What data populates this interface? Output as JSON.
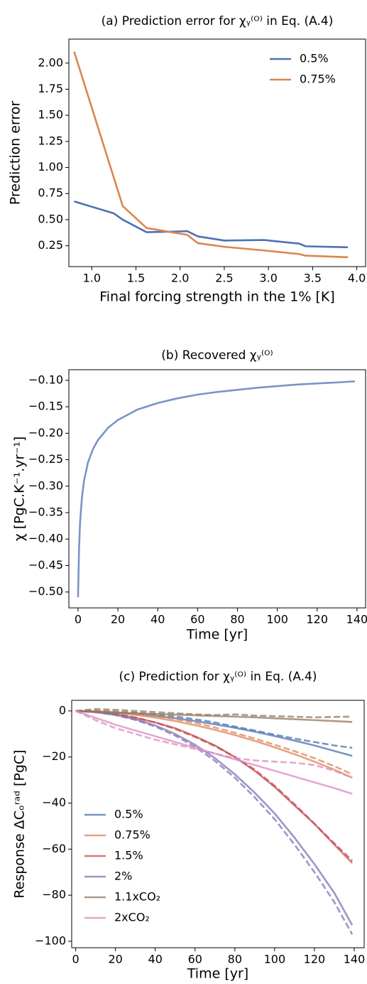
{
  "chart_data": [
    {
      "type": "line",
      "title": "(a)   Prediction error for χᵧ⁽ᴼ⁾ in Eq. (A.4)",
      "xlabel": "Final forcing strength in the 1% [K]",
      "ylabel": "Prediction error",
      "x": [
        0.8,
        1.25,
        1.35,
        1.62,
        1.9,
        2.08,
        2.2,
        2.5,
        2.95,
        3.35,
        3.42,
        3.9
      ],
      "series": [
        {
          "name": "0.5%",
          "color": "#4c72b0",
          "values": [
            0.675,
            0.56,
            0.5,
            0.38,
            0.385,
            0.39,
            0.34,
            0.3,
            0.305,
            0.27,
            0.245,
            0.235
          ]
        },
        {
          "name": "0.75%",
          "color": "#dd8452",
          "values": [
            2.11,
            0.9,
            0.63,
            0.42,
            0.38,
            0.355,
            0.275,
            0.24,
            0.205,
            0.17,
            0.155,
            0.14
          ]
        }
      ],
      "xlim": [
        0.74,
        4.1
      ],
      "ylim": [
        0.05,
        2.23
      ],
      "xticks": [
        {
          "value": 1,
          "label": "1.0"
        },
        1.5,
        {
          "value": 2,
          "label": "2.0"
        },
        2.5,
        {
          "value": 3,
          "label": "3.0"
        },
        3.5,
        {
          "value": 4,
          "label": "4.0"
        }
      ],
      "yticks": [
        0.25,
        {
          "value": 0.5,
          "label": "0.50"
        },
        0.75,
        {
          "value": 1,
          "label": "1.00"
        },
        1.25,
        {
          "value": 1.5,
          "label": "1.50"
        },
        1.75,
        {
          "value": 2,
          "label": "2.00"
        }
      ],
      "legend": "upper right",
      "alpha": 1
    },
    {
      "type": "line",
      "title": "(b)   Recovered χᵧ⁽ᴼ⁾",
      "xlabel": "Time [yr]",
      "ylabel": "χ [PgC.K⁻¹.yr⁻¹]",
      "x": [
        0,
        0.5,
        1,
        2,
        3,
        5,
        7.5,
        10,
        15,
        20,
        30,
        40,
        50,
        60,
        70,
        80,
        90,
        100,
        110,
        120,
        130,
        139
      ],
      "series": [
        {
          "color": "#4c72b0",
          "values": [
            -0.51,
            -0.42,
            -0.37,
            -0.32,
            -0.29,
            -0.255,
            -0.23,
            -0.213,
            -0.19,
            -0.175,
            -0.155,
            -0.143,
            -0.134,
            -0.127,
            -0.122,
            -0.118,
            -0.114,
            -0.111,
            -0.108,
            -0.106,
            -0.104,
            -0.102
          ]
        }
      ],
      "xlim": [
        -4.6,
        144.3
      ],
      "ylim": [
        -0.53,
        -0.08
      ],
      "xticks": [
        0,
        20,
        40,
        60,
        80,
        100,
        120,
        140
      ],
      "yticks": [
        {
          "value": -0.1,
          "label": "−0.10"
        },
        {
          "value": -0.15,
          "label": "−0.15"
        },
        {
          "value": -0.2,
          "label": "−0.20"
        },
        {
          "value": -0.25,
          "label": "−0.25"
        },
        {
          "value": -0.3,
          "label": "−0.30"
        },
        {
          "value": -0.35,
          "label": "−0.35"
        },
        {
          "value": -0.4,
          "label": "−0.40"
        },
        {
          "value": -0.45,
          "label": "−0.45"
        },
        {
          "value": -0.5,
          "label": "−0.50"
        }
      ],
      "alpha": 0.75
    },
    {
      "type": "line",
      "title": "(c)   Prediction for χᵧ⁽ᴼ⁾ in Eq. (A.4)",
      "xlabel": "Time [yr]",
      "ylabel": "Response ΔCₒʳᵃᵈ [PgC]",
      "x": [
        0,
        10,
        20,
        30,
        40,
        50,
        60,
        70,
        80,
        90,
        100,
        110,
        120,
        130,
        139
      ],
      "series": [
        {
          "name": "0.5%",
          "color": "#4c72b0",
          "values": [
            0,
            -0.2,
            -0.6,
            -1.3,
            -2.1,
            -3.2,
            -4.4,
            -5.8,
            -7.3,
            -9,
            -10.9,
            -12.9,
            -15,
            -17.4,
            -19.5
          ],
          "predicted": [
            0,
            0,
            -0.3,
            -0.8,
            -1.5,
            -2.4,
            -3.6,
            -5,
            -6.8,
            -8.5,
            -10.3,
            -12,
            -13.5,
            -15,
            -16
          ]
        },
        {
          "name": "0.75%",
          "color": "#dd8452",
          "values": [
            0,
            -0.2,
            -0.8,
            -1.7,
            -2.9,
            -4.4,
            -6.2,
            -8.2,
            -10.5,
            -13,
            -15.8,
            -18.8,
            -22,
            -25.5,
            -29
          ],
          "predicted": [
            0,
            0,
            -0.5,
            -1.2,
            -2.2,
            -3.5,
            -5.2,
            -7.2,
            -9.5,
            -12,
            -14.7,
            -17.5,
            -20.5,
            -24,
            -27.5
          ]
        },
        {
          "name": "1.5%",
          "color": "#c44e52",
          "values": [
            0,
            -0.5,
            -1.5,
            -3,
            -5,
            -7.5,
            -11,
            -15,
            -20,
            -26,
            -33,
            -41,
            -49,
            -58,
            -66
          ],
          "predicted": [
            0,
            -0.3,
            -1.2,
            -2.8,
            -5,
            -7.8,
            -11.3,
            -15.3,
            -20,
            -25.5,
            -32.5,
            -40.5,
            -49,
            -57.5,
            -65
          ]
        },
        {
          "name": "2%",
          "color": "#8172b3",
          "values": [
            0,
            -0.5,
            -1.7,
            -3.6,
            -6.3,
            -10,
            -14.7,
            -20.5,
            -27.5,
            -35.5,
            -44.5,
            -55,
            -66.5,
            -79,
            -93
          ],
          "predicted": [
            0,
            -0.5,
            -1.8,
            -3.9,
            -6.8,
            -10.7,
            -15.6,
            -21.7,
            -29,
            -37.5,
            -47,
            -58,
            -70,
            -83,
            -97
          ]
        },
        {
          "name": "1.1xCO₂",
          "color": "#937860",
          "values": [
            0,
            -0.5,
            -0.8,
            -1,
            -1.3,
            -1.6,
            -1.9,
            -2.2,
            -2.5,
            -2.8,
            -3.2,
            -3.6,
            -4,
            -4.4,
            -4.8
          ],
          "predicted": [
            0,
            0.8,
            0.5,
            0,
            -0.5,
            -1,
            -1.5,
            -1.8,
            -1.5,
            -2,
            -2.3,
            -2.5,
            -2.8,
            -2.6,
            -2.5
          ]
        },
        {
          "name": "2xCO₂",
          "color": "#da8bc3",
          "values": [
            0,
            -3,
            -6,
            -8.5,
            -11,
            -13.5,
            -16,
            -18.5,
            -21,
            -23.5,
            -26,
            -28.5,
            -31,
            -33.5,
            -36
          ],
          "predicted": [
            0,
            -4,
            -7.5,
            -10,
            -12.5,
            -14.5,
            -16.5,
            -18.5,
            -20.5,
            -21.5,
            -22,
            -22.5,
            -23.5,
            -26,
            -29
          ]
        }
      ],
      "xlim": [
        -2,
        145
      ],
      "ylim": [
        -102.8,
        4.6
      ],
      "xticks": [
        0,
        20,
        40,
        60,
        80,
        100,
        120,
        140
      ],
      "yticks": [
        0,
        {
          "value": -20,
          "label": "−20"
        },
        {
          "value": -40,
          "label": "−40"
        },
        {
          "value": -60,
          "label": "−60"
        },
        {
          "value": -80,
          "label": "−80"
        },
        {
          "value": -100,
          "label": "−100"
        }
      ],
      "legend": "lower left",
      "alpha": 0.75
    }
  ]
}
